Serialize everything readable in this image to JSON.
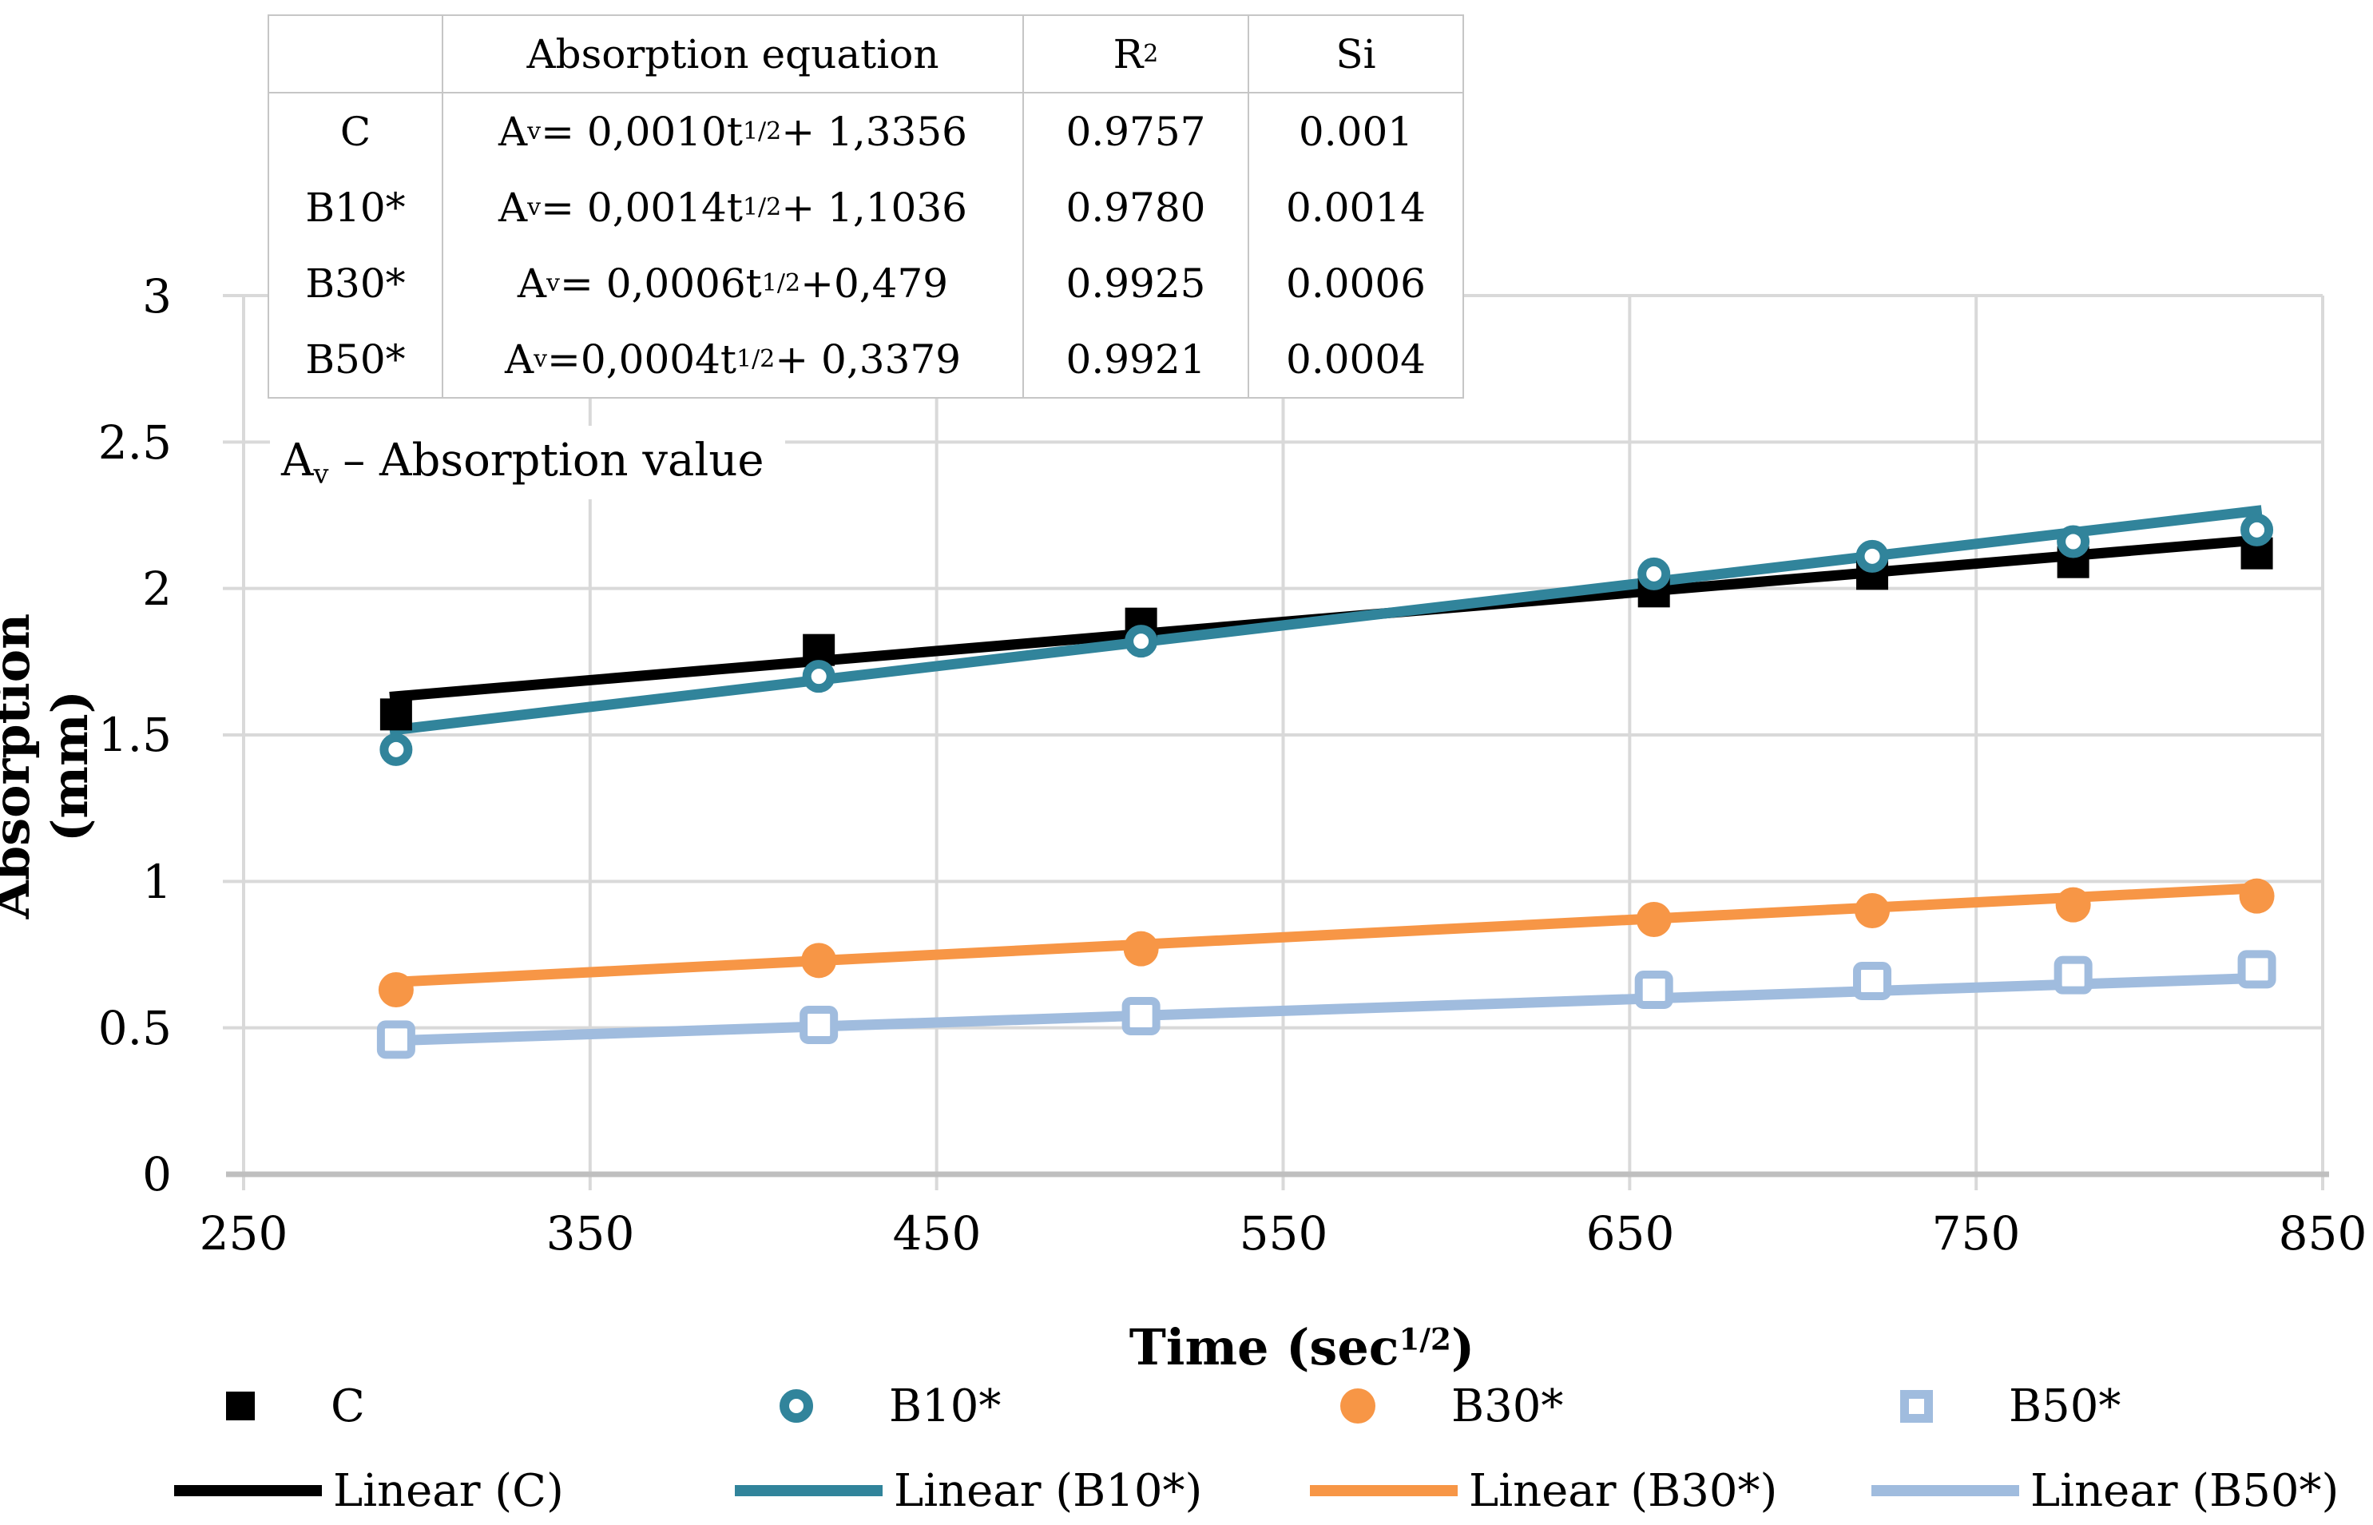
{
  "colors": {
    "background": "#ffffff",
    "gridline": "#d9d9d9",
    "axis_line": "#bfbfbf",
    "series_c": "#000000",
    "series_b10": "#31849b",
    "series_b30": "#f79646",
    "series_b50": "#a0bcde"
  },
  "table": {
    "header": {
      "equation": "Absorption equation",
      "r_base": "R",
      "r_sup": "2",
      "si": "Si"
    },
    "eq_prefix": "A",
    "eq_sub": "v",
    "eq_sup": "1/2",
    "rows": [
      {
        "label": "C",
        "eq_mid": " = 0,0010t",
        "eq_end": " + 1,3356",
        "r2": "0.9757",
        "si": "0.001"
      },
      {
        "label": "B10*",
        "eq_mid": " = 0,0014t",
        "eq_end": " + 1,1036",
        "r2": "0.9780",
        "si": "0.0014"
      },
      {
        "label": "B30*",
        "eq_mid": " = 0,0006t",
        "eq_end": " +0,479",
        "r2": "0.9925",
        "si": "0.0006"
      },
      {
        "label": "B50*",
        "eq_mid": " =0,0004t",
        "eq_end": " + 0,3379",
        "r2": "0.9921",
        "si": "0.0004"
      }
    ]
  },
  "note": {
    "prefix": "A",
    "sub": "v",
    "rest": " – Absorption value"
  },
  "axes": {
    "y_title": "Absorption (mm)",
    "x_title_base": "Time (sec",
    "x_title_sup": "1/2",
    "x_title_close": ")",
    "y_ticks": [
      "3",
      "2.5",
      "2",
      "1.5",
      "1",
      "0.5",
      "0"
    ],
    "x_ticks": [
      "250",
      "350",
      "450",
      "550",
      "650",
      "750",
      "850"
    ]
  },
  "legend": {
    "markers": [
      {
        "label": "C"
      },
      {
        "label": "B10*"
      },
      {
        "label": "B30*"
      },
      {
        "label": "B50*"
      }
    ],
    "lines": [
      {
        "label": "Linear (C)"
      },
      {
        "label": "Linear (B10*)"
      },
      {
        "label": "Linear (B30*)"
      },
      {
        "label": "Linear (B50*)"
      }
    ]
  },
  "chart_data": {
    "type": "scatter",
    "title": "",
    "xlabel": "Time (sec^1/2)",
    "ylabel": "Absorption (mm)",
    "x_range": [
      250,
      850
    ],
    "y_range": [
      0,
      3
    ],
    "x_tick_step": 100,
    "y_tick_step": 0.5,
    "grid": true,
    "legend_position": "bottom",
    "x": [
      294,
      416,
      509,
      657,
      720,
      778,
      831
    ],
    "series": [
      {
        "name": "C",
        "marker": "filled-square",
        "color": "#000000",
        "values": [
          1.57,
          1.79,
          1.88,
          1.99,
          2.05,
          2.09,
          2.12
        ],
        "trendline": {
          "label": "Linear (C)",
          "slope": 0.001,
          "intercept": 1.3356,
          "r2": 0.9757,
          "si": 0.001,
          "equation": "Av = 0,0010t^(1/2) + 1,3356"
        }
      },
      {
        "name": "B10*",
        "marker": "open-circle",
        "color": "#31849b",
        "values": [
          1.45,
          1.7,
          1.82,
          2.05,
          2.11,
          2.16,
          2.2
        ],
        "trendline": {
          "label": "Linear (B10*)",
          "slope": 0.0014,
          "intercept": 1.1036,
          "r2": 0.978,
          "si": 0.0014,
          "equation": "Av = 0,0014t^(1/2) + 1,1036"
        }
      },
      {
        "name": "B30*",
        "marker": "filled-circle",
        "color": "#f79646",
        "values": [
          0.63,
          0.73,
          0.77,
          0.87,
          0.9,
          0.92,
          0.95
        ],
        "trendline": {
          "label": "Linear (B30*)",
          "slope": 0.0006,
          "intercept": 0.479,
          "r2": 0.9925,
          "si": 0.0006,
          "equation": "Av = 0,0006t^(1/2) + 0,479"
        }
      },
      {
        "name": "B50*",
        "marker": "open-square",
        "color": "#a0bcde",
        "values": [
          0.46,
          0.51,
          0.54,
          0.63,
          0.66,
          0.68,
          0.7
        ],
        "trendline": {
          "label": "Linear (B50*)",
          "slope": 0.0004,
          "intercept": 0.3379,
          "r2": 0.9921,
          "si": 0.0004,
          "equation": "Av = 0,0004t^(1/2) + 0,3379"
        }
      }
    ]
  }
}
